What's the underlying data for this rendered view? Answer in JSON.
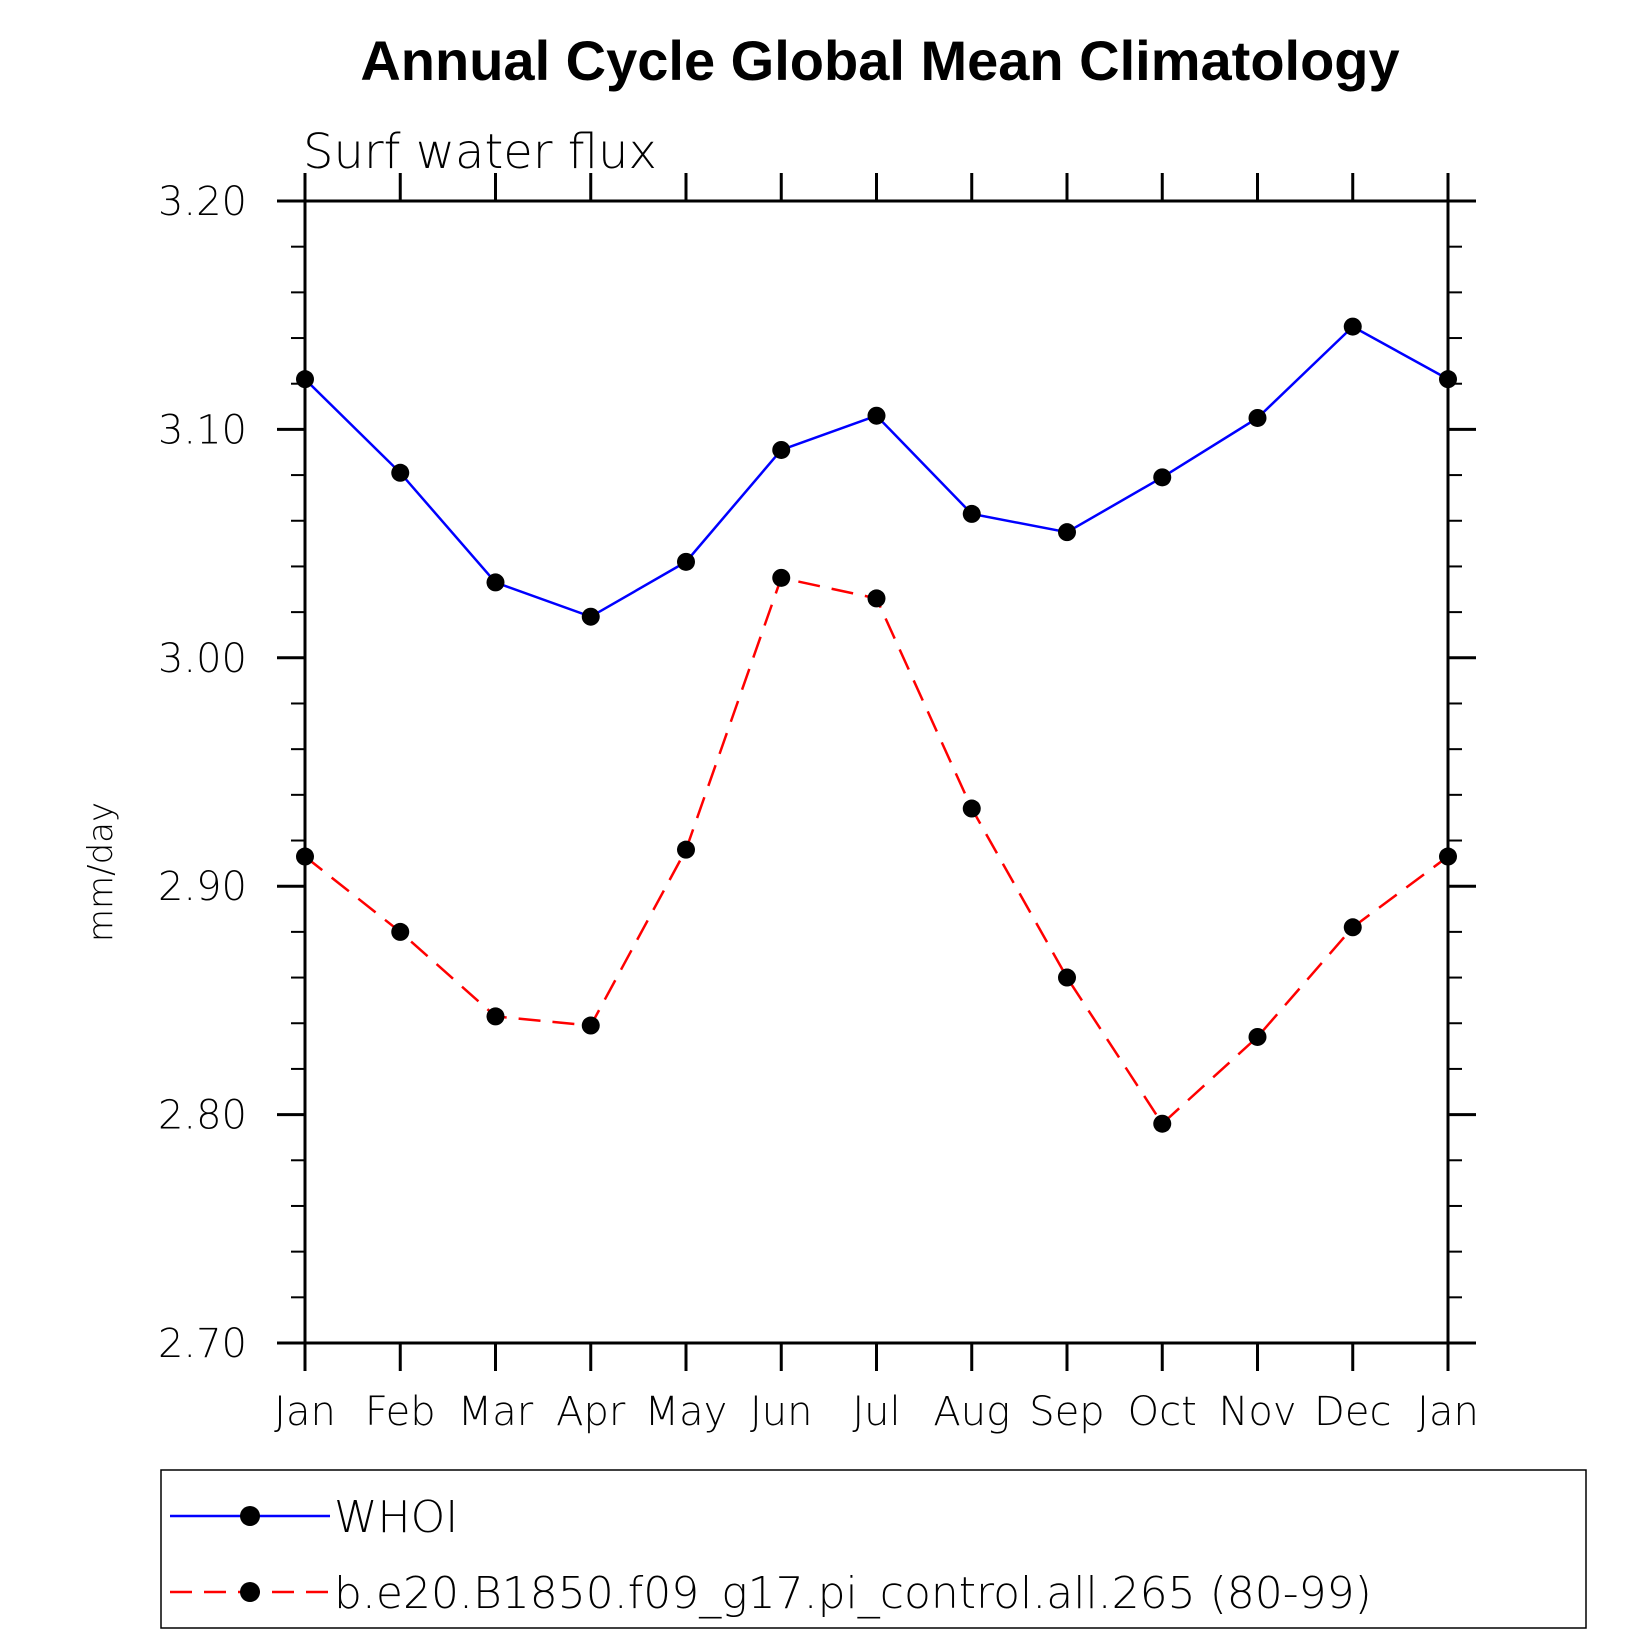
{
  "chart_data": {
    "type": "line",
    "title": "Annual Cycle Global Mean Climatology",
    "subtitle": "Surf water flux",
    "xlabel": "",
    "ylabel": "mm/day",
    "categories": [
      "Jan",
      "Feb",
      "Mar",
      "Apr",
      "May",
      "Jun",
      "Jul",
      "Aug",
      "Sep",
      "Oct",
      "Nov",
      "Dec",
      "Jan"
    ],
    "ylim": [
      2.7,
      3.2
    ],
    "yticks": [
      "2.70",
      "2.80",
      "2.90",
      "3.00",
      "3.10",
      "3.20"
    ],
    "grid": false,
    "legend_position": "bottom",
    "series": [
      {
        "name": "WHOI",
        "color": "#0000ff",
        "line_style": "solid",
        "marker": "filled-circle",
        "values": [
          3.122,
          3.081,
          3.033,
          3.018,
          3.042,
          3.091,
          3.106,
          3.063,
          3.055,
          3.079,
          3.105,
          3.145,
          3.122
        ]
      },
      {
        "name": "b.e20.B1850.f09_g17.pi_control.all.265 (80-99)",
        "color": "#ff0000",
        "line_style": "dashed",
        "marker": "filled-circle",
        "values": [
          2.913,
          2.88,
          2.843,
          2.839,
          2.916,
          3.035,
          3.026,
          2.934,
          2.86,
          2.796,
          2.834,
          2.882,
          2.913
        ]
      }
    ]
  }
}
